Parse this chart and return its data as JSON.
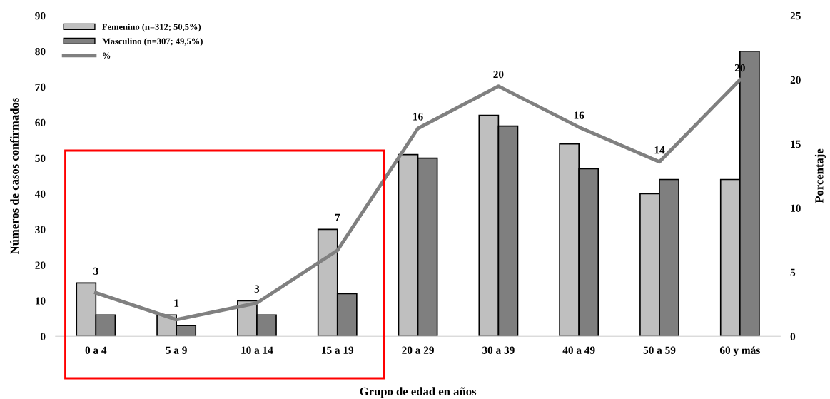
{
  "chart_data": {
    "type": "bar",
    "xlabel": "Grupo de edad en años",
    "ylabel": "Números de casos confirmados",
    "y2label": "Porcentaje",
    "categories": [
      "0 a 4",
      "5 a 9",
      "10 a 14",
      "15 a 19",
      "20 a 29",
      "30 a 39",
      "40 a 49",
      "50 a 59",
      "60 y más"
    ],
    "series": [
      {
        "name": "Femenino (n=312; 50,5%)",
        "color": "#bfbfbf",
        "values": [
          15,
          6,
          10,
          30,
          51,
          62,
          54,
          40,
          44
        ]
      },
      {
        "name": "Masculino (n=307; 49,5%)",
        "color": "#7f7f7f",
        "values": [
          6,
          3,
          6,
          12,
          50,
          59,
          47,
          44,
          80
        ]
      },
      {
        "name": "%",
        "type": "line",
        "axis": "y2",
        "color": "#808080",
        "marker": "none",
        "values": [
          3.4,
          1.3,
          2.6,
          6.7,
          16.2,
          19.5,
          16.3,
          13.6,
          20.0
        ],
        "value_labels": [
          "3",
          "1",
          "3",
          "7",
          "16",
          "20",
          "16",
          "14",
          "20"
        ]
      }
    ],
    "ylim": [
      0,
      90
    ],
    "yticks": [
      0,
      10,
      20,
      30,
      40,
      50,
      60,
      70,
      80,
      90
    ],
    "y2lim": [
      0,
      25
    ],
    "y2ticks": [
      0,
      5,
      10,
      15,
      20,
      25
    ],
    "grid": false,
    "legend": "top left"
  }
}
